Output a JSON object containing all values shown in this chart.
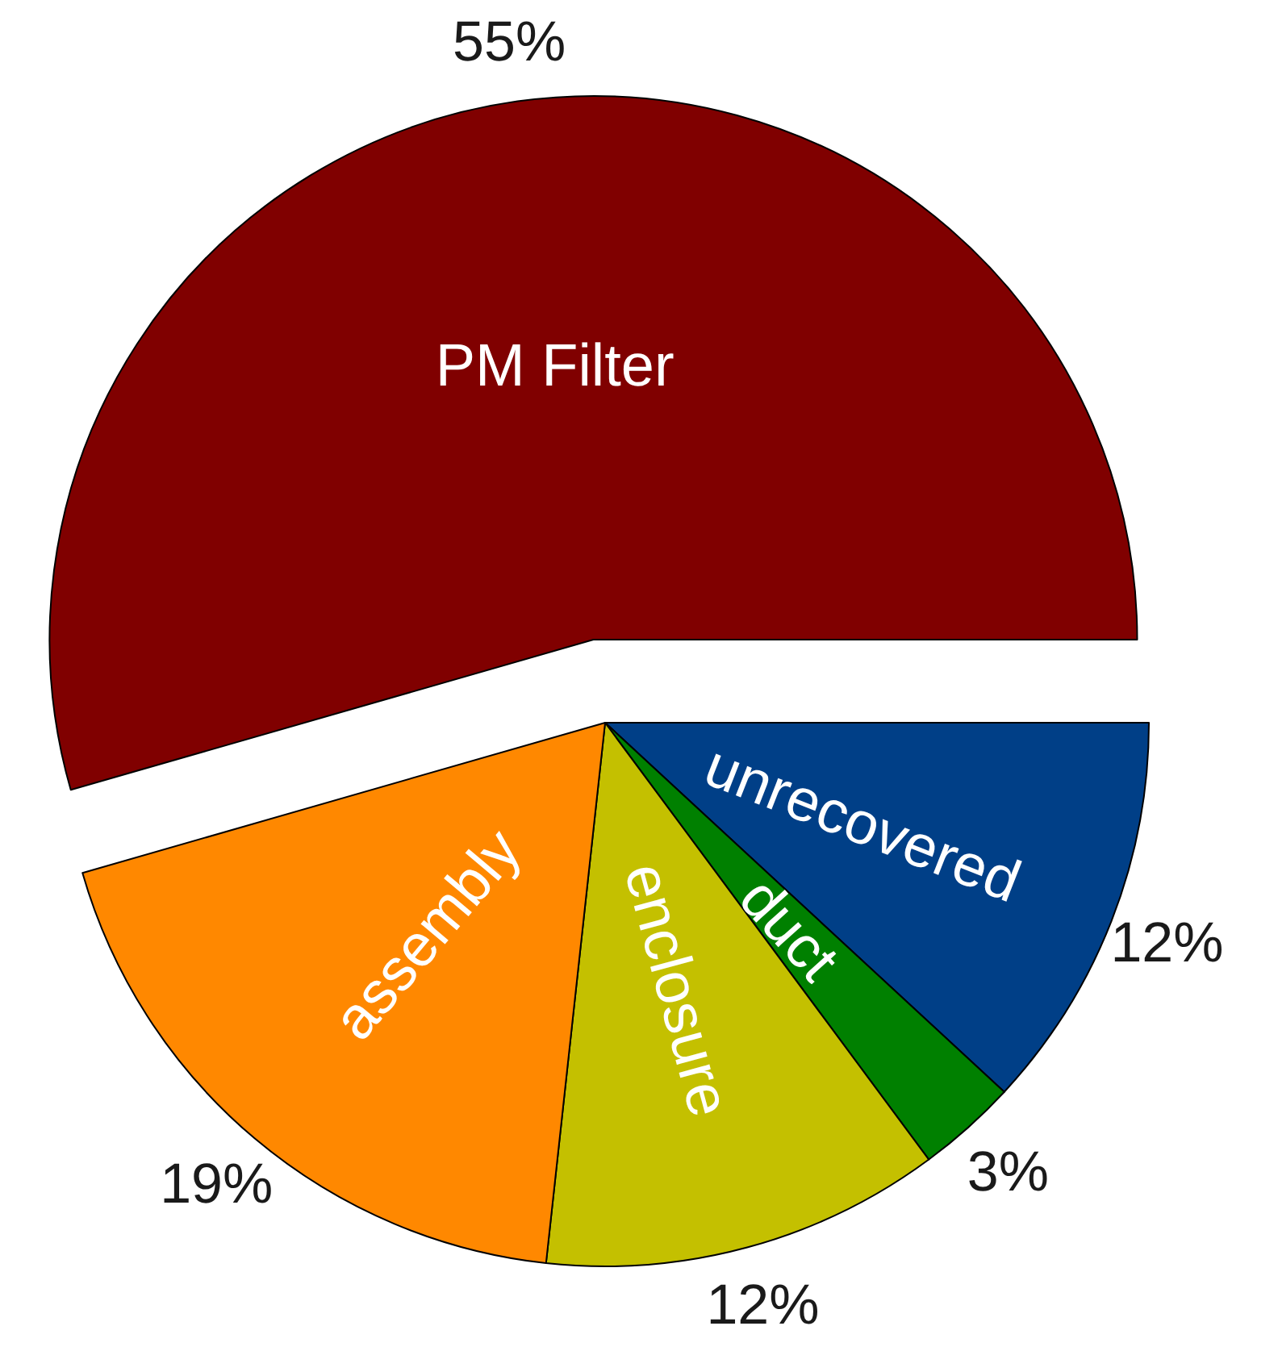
{
  "chart_data": {
    "type": "pie",
    "categories": [
      "unrecovered",
      "duct",
      "enclosure",
      "assembly",
      "PM Filter"
    ],
    "values": [
      12,
      3,
      12,
      19,
      55
    ],
    "colors": [
      "#003f87",
      "#008000",
      "#c4c000",
      "#ff8800",
      "#800000"
    ],
    "value_labels": [
      "12%",
      "3%",
      "12%",
      "19%",
      "55%"
    ]
  }
}
